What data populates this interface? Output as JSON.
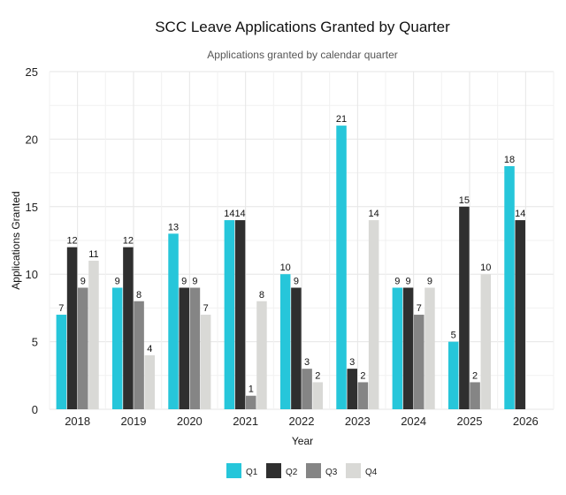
{
  "chart_data": {
    "type": "bar",
    "title": "SCC Leave Applications Granted by Quarter",
    "subtitle": "Applications granted by calendar quarter",
    "xlabel": "Year",
    "ylabel": "Applications Granted",
    "categories": [
      "2018",
      "2019",
      "2020",
      "2021",
      "2022",
      "2023",
      "2024",
      "2025",
      "2026"
    ],
    "ylim": [
      0,
      25
    ],
    "yticks": [
      0,
      5,
      10,
      15,
      20,
      25
    ],
    "grid": true,
    "legend_position": "bottom",
    "series": [
      {
        "name": "Q1",
        "color": "#26c6da",
        "values": [
          7,
          9,
          13,
          14,
          10,
          21,
          9,
          5,
          18
        ]
      },
      {
        "name": "Q2",
        "color": "#2f2f2f",
        "values": [
          12,
          12,
          9,
          14,
          9,
          3,
          9,
          15,
          14
        ]
      },
      {
        "name": "Q3",
        "color": "#858585",
        "values": [
          9,
          8,
          9,
          1,
          3,
          2,
          7,
          2,
          null
        ]
      },
      {
        "name": "Q4",
        "color": "#d9d9d6",
        "values": [
          11,
          4,
          7,
          8,
          2,
          14,
          9,
          10,
          null
        ]
      }
    ]
  }
}
